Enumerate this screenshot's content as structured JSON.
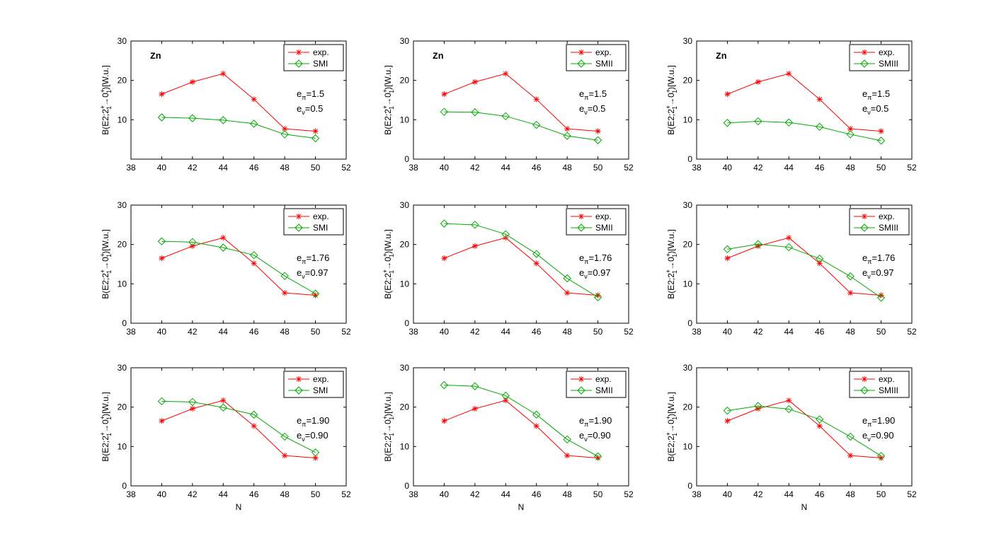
{
  "figure": {
    "xlabel": "N",
    "ylabel": "B(E2;2",
    "ylabel_sup1": "+",
    "ylabel_sub1": "1",
    "ylabel_mid": "→0",
    "ylabel_sup2": "+",
    "ylabel_sub2": "1",
    "ylabel_end": ")[W.u.]",
    "element_label": "Zn",
    "e_pi_prefix": "e",
    "e_pi_sub": "π",
    "e_nu_prefix": "e",
    "e_nu_sub": "ν"
  },
  "colors": {
    "exp": "#ff0000",
    "model": "#00aa00"
  },
  "chart_data": [
    {
      "id": "r0c0",
      "type": "line",
      "title": "",
      "xlim": [
        38,
        52
      ],
      "ylim": [
        0,
        30
      ],
      "xticks": [
        38,
        40,
        42,
        44,
        46,
        48,
        50,
        52
      ],
      "yticks": [
        10,
        20,
        30
      ],
      "element": "Zn",
      "x": [
        40,
        42,
        44,
        46,
        48,
        50
      ],
      "e_pi": "=1.5",
      "e_nu": "=0.5",
      "series": [
        {
          "name": "exp.",
          "values": [
            16.5,
            19.6,
            21.7,
            15.2,
            7.7,
            7.1
          ]
        },
        {
          "name": "SMI",
          "values": [
            10.6,
            10.4,
            9.9,
            9.0,
            6.3,
            5.3
          ]
        }
      ]
    },
    {
      "id": "r0c1",
      "type": "line",
      "title": "",
      "xlim": [
        38,
        52
      ],
      "ylim": [
        0,
        30
      ],
      "xticks": [
        38,
        40,
        42,
        44,
        46,
        48,
        50,
        52
      ],
      "yticks": [
        0,
        10,
        20,
        30
      ],
      "element": "Zn",
      "x": [
        40,
        42,
        44,
        46,
        48,
        50
      ],
      "e_pi": "=1.5",
      "e_nu": "=0.5",
      "series": [
        {
          "name": "exp.",
          "values": [
            16.5,
            19.6,
            21.7,
            15.2,
            7.7,
            7.1
          ]
        },
        {
          "name": "SMII",
          "values": [
            12.0,
            11.9,
            10.9,
            8.7,
            5.9,
            4.8
          ]
        }
      ]
    },
    {
      "id": "r0c2",
      "type": "line",
      "title": "",
      "xlim": [
        38,
        52
      ],
      "ylim": [
        0,
        30
      ],
      "xticks": [
        38,
        40,
        42,
        44,
        46,
        48,
        50,
        52
      ],
      "yticks": [
        0,
        10,
        20,
        30
      ],
      "element": "Zn",
      "x": [
        40,
        42,
        44,
        46,
        48,
        50
      ],
      "e_pi": "=1.5",
      "e_nu": "=0.5",
      "series": [
        {
          "name": "exp.",
          "values": [
            16.5,
            19.6,
            21.7,
            15.2,
            7.7,
            7.1
          ]
        },
        {
          "name": "SMIII",
          "values": [
            9.2,
            9.6,
            9.3,
            8.2,
            6.3,
            4.7
          ]
        }
      ]
    },
    {
      "id": "r1c0",
      "type": "line",
      "title": "",
      "xlim": [
        38,
        52
      ],
      "ylim": [
        0,
        30
      ],
      "xticks": [
        38,
        40,
        42,
        44,
        46,
        48,
        50,
        52
      ],
      "yticks": [
        0,
        10,
        20,
        30
      ],
      "element": "",
      "x": [
        40,
        42,
        44,
        46,
        48,
        50
      ],
      "e_pi": "=1.76",
      "e_nu": "=0.97",
      "series": [
        {
          "name": "exp.",
          "values": [
            16.5,
            19.6,
            21.7,
            15.2,
            7.7,
            7.1
          ]
        },
        {
          "name": "SMI",
          "values": [
            20.8,
            20.6,
            19.2,
            17.3,
            12.0,
            7.5
          ]
        }
      ]
    },
    {
      "id": "r1c1",
      "type": "line",
      "title": "",
      "xlim": [
        38,
        52
      ],
      "ylim": [
        0,
        30
      ],
      "xticks": [
        38,
        40,
        42,
        44,
        46,
        48,
        50,
        52
      ],
      "yticks": [
        0,
        10,
        20,
        30
      ],
      "element": "",
      "x": [
        40,
        42,
        44,
        46,
        48,
        50
      ],
      "e_pi": "=1.76",
      "e_nu": "=0.97",
      "series": [
        {
          "name": "exp.",
          "values": [
            16.5,
            19.6,
            21.7,
            15.2,
            7.7,
            7.1
          ]
        },
        {
          "name": "SMII",
          "values": [
            25.3,
            25.0,
            22.6,
            17.6,
            11.4,
            6.6
          ]
        }
      ]
    },
    {
      "id": "r1c2",
      "type": "line",
      "title": "",
      "xlim": [
        38,
        52
      ],
      "ylim": [
        0,
        30
      ],
      "xticks": [
        38,
        40,
        42,
        44,
        46,
        48,
        50,
        52
      ],
      "yticks": [
        0,
        10,
        20,
        30
      ],
      "element": "",
      "x": [
        40,
        42,
        44,
        46,
        48,
        50
      ],
      "e_pi": "=1.76",
      "e_nu": "=0.97",
      "series": [
        {
          "name": "exp.",
          "values": [
            16.5,
            19.6,
            21.7,
            15.2,
            7.7,
            7.1
          ]
        },
        {
          "name": "SMIII",
          "values": [
            18.8,
            20.1,
            19.3,
            16.4,
            11.9,
            6.5
          ]
        }
      ]
    },
    {
      "id": "r2c0",
      "type": "line",
      "title": "",
      "xlim": [
        38,
        52
      ],
      "ylim": [
        0,
        30
      ],
      "xticks": [
        38,
        40,
        42,
        44,
        46,
        48,
        50,
        52
      ],
      "yticks": [
        0,
        10,
        20,
        30
      ],
      "element": "",
      "x": [
        40,
        42,
        44,
        46,
        48,
        50
      ],
      "e_pi": "=1.90",
      "e_nu": "=0.90",
      "series": [
        {
          "name": "exp.",
          "values": [
            16.5,
            19.6,
            21.7,
            15.2,
            7.7,
            7.1
          ]
        },
        {
          "name": "SMI",
          "values": [
            21.5,
            21.3,
            19.9,
            18.1,
            12.5,
            8.5
          ]
        }
      ]
    },
    {
      "id": "r2c1",
      "type": "line",
      "title": "",
      "xlim": [
        38,
        52
      ],
      "ylim": [
        0,
        30
      ],
      "xticks": [
        38,
        40,
        42,
        44,
        46,
        48,
        50,
        52
      ],
      "yticks": [
        0,
        10,
        20,
        30
      ],
      "element": "",
      "x": [
        40,
        42,
        44,
        46,
        48,
        50
      ],
      "e_pi": "=1.90",
      "e_nu": "=0.90",
      "series": [
        {
          "name": "exp.",
          "values": [
            16.5,
            19.6,
            21.7,
            15.2,
            7.7,
            7.1
          ]
        },
        {
          "name": "SMII",
          "values": [
            25.6,
            25.3,
            22.9,
            18.1,
            11.8,
            7.5
          ]
        }
      ]
    },
    {
      "id": "r2c2",
      "type": "line",
      "title": "",
      "xlim": [
        38,
        52
      ],
      "ylim": [
        0,
        30
      ],
      "xticks": [
        38,
        40,
        42,
        44,
        46,
        48,
        50,
        52
      ],
      "yticks": [
        0,
        10,
        20,
        30
      ],
      "element": "",
      "x": [
        40,
        42,
        44,
        46,
        48,
        50
      ],
      "e_pi": "=1.90",
      "e_nu": "=0.90",
      "series": [
        {
          "name": "exp.",
          "values": [
            16.5,
            19.6,
            21.7,
            15.2,
            7.7,
            7.1
          ]
        },
        {
          "name": "SMIII",
          "values": [
            19.1,
            20.3,
            19.5,
            16.9,
            12.5,
            7.6
          ]
        }
      ]
    }
  ]
}
